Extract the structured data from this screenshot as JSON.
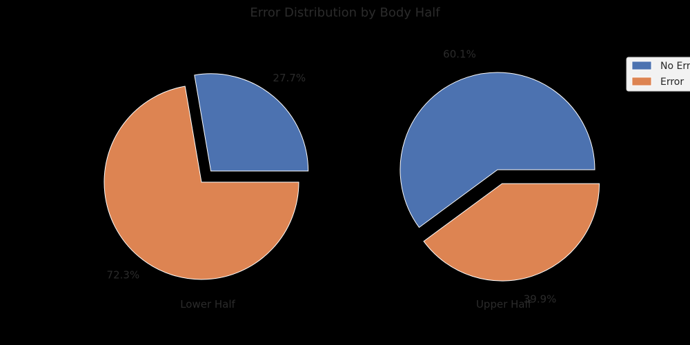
{
  "chart_data": {
    "type": "pie",
    "title": "Error Distribution by Body Half",
    "legend": {
      "placement": "top-right",
      "entries": [
        "No Error",
        "Error"
      ]
    },
    "colors": {
      "No Error": "#4c72b0",
      "Error": "#dd8452",
      "background": "#000000",
      "text": "#2b2b2b"
    },
    "charts": [
      {
        "label": "Lower Half",
        "slices": [
          {
            "name": "No Error",
            "value": 27.7,
            "label": "27.7%",
            "exploded": true
          },
          {
            "name": "Error",
            "value": 72.3,
            "label": "72.3%",
            "exploded": false
          }
        ]
      },
      {
        "label": "Upper Half",
        "slices": [
          {
            "name": "No Error",
            "value": 60.1,
            "label": "60.1%",
            "exploded": false
          },
          {
            "name": "Error",
            "value": 39.9,
            "label": "39.9%",
            "exploded": true
          }
        ]
      }
    ]
  }
}
